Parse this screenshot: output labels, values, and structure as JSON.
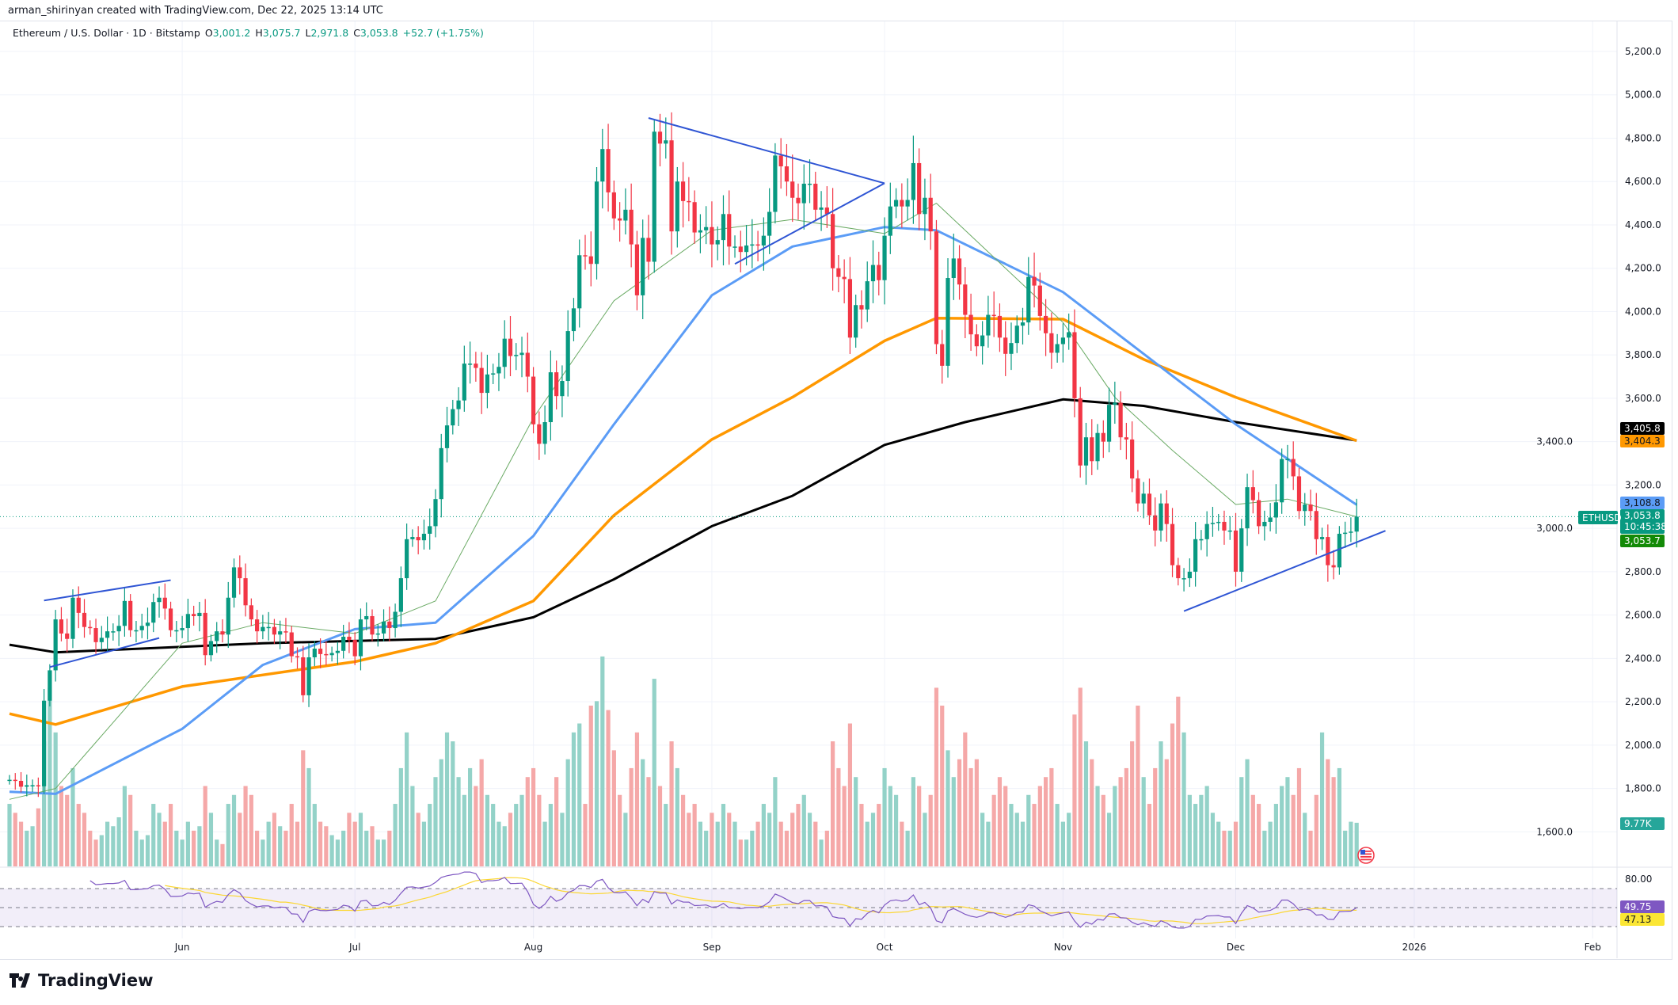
{
  "attribution": "arman_shirinyan created with TradingView.com, Dec 22, 2025 13:14 UTC",
  "legend": {
    "symbol": "Ethereum / U.S. Dollar · 1D · Bitstamp",
    "o_label": "O",
    "o": "3,001.2",
    "h_label": "H",
    "h": "3,075.7",
    "l_label": "L",
    "l": "2,971.8",
    "c_label": "C",
    "c": "3,053.8",
    "change": "+52.7 (+1.75%)"
  },
  "branding": "TradingView",
  "price_axis_labels": [
    "5,200.0",
    "5,000.0",
    "4,800.0",
    "4,600.0",
    "4,400.0",
    "4,200.0",
    "4,000.0",
    "3,800.0",
    "3,600.0",
    "3,400.0",
    "3,200.0",
    "3,000.0",
    "2,800.0",
    "2,600.0",
    "2,400.0",
    "2,200.0",
    "2,000.0",
    "1,800.0",
    "1,600.0"
  ],
  "time_axis_labels": [
    {
      "label": "Jun",
      "date": "2025-06-01"
    },
    {
      "label": "Jul",
      "date": "2025-07-01"
    },
    {
      "label": "Aug",
      "date": "2025-08-01"
    },
    {
      "label": "Sep",
      "date": "2025-09-01"
    },
    {
      "label": "Oct",
      "date": "2025-10-01"
    },
    {
      "label": "Nov",
      "date": "2025-11-01"
    },
    {
      "label": "Dec",
      "date": "2025-12-01"
    },
    {
      "label": "2026",
      "date": "2026-01-01"
    },
    {
      "label": "Feb",
      "date": "2026-02-01"
    }
  ],
  "price_tags": {
    "ma200": {
      "text": "3,405.8",
      "color": "#000000"
    },
    "ma100": {
      "text": "3,404.3",
      "color": "#ff9800"
    },
    "ma50": {
      "text": "3,108.8",
      "color": "#5b9cf6"
    },
    "last": {
      "text": "3,053.8",
      "countdown": "10:45:38",
      "symbol": "ETHUSD",
      "color": "#089981"
    },
    "ma20": {
      "text": "3,053.7",
      "color": "#138a07"
    },
    "volume": {
      "text": "9.77K",
      "color": "#26a69a"
    },
    "rsi": {
      "text": "49.75",
      "color": "#7e57c2"
    },
    "rsi_ma": {
      "text": "47.13",
      "color": "#fbe634"
    },
    "rsi_axis": "80.00"
  },
  "chart_data": {
    "type": "candlestick",
    "start_date": "2025-05-02",
    "interval": "1D",
    "ylim": [
      1600,
      5300
    ],
    "colors": {
      "up": "#089981",
      "down": "#f23645",
      "ma20": "#6aaa64",
      "ma50": "#5b9cf6",
      "ma100": "#ff9800",
      "ma200": "#000000",
      "trendline": "#2f55d4"
    },
    "close": [
      1840,
      1835,
      1808,
      1815,
      1815,
      1810,
      2205,
      2345,
      2580,
      2515,
      2490,
      2680,
      2610,
      2545,
      2540,
      2475,
      2495,
      2525,
      2525,
      2550,
      2665,
      2530,
      2530,
      2550,
      2565,
      2660,
      2680,
      2630,
      2530,
      2530,
      2540,
      2605,
      2595,
      2610,
      2415,
      2480,
      2525,
      2510,
      2680,
      2820,
      2770,
      2645,
      2580,
      2525,
      2545,
      2545,
      2510,
      2525,
      2520,
      2410,
      2405,
      2230,
      2405,
      2445,
      2420,
      2415,
      2425,
      2435,
      2500,
      2485,
      2410,
      2580,
      2595,
      2510,
      2515,
      2570,
      2540,
      2615,
      2770,
      2950,
      2960,
      2945,
      2975,
      3010,
      3135,
      3370,
      3475,
      3550,
      3590,
      3760,
      3760,
      3740,
      3625,
      3710,
      3715,
      3745,
      3875,
      3795,
      3800,
      3810,
      3700,
      3480,
      3390,
      3490,
      3720,
      3610,
      3680,
      3910,
      4015,
      4260,
      4255,
      4220,
      4600,
      4750,
      4550,
      4430,
      4420,
      4470,
      4310,
      4075,
      4340,
      4230,
      4830,
      4775,
      4790,
      4370,
      4600,
      4510,
      4505,
      4365,
      4375,
      4390,
      4310,
      4330,
      4450,
      4300,
      4300,
      4275,
      4305,
      4310,
      4305,
      4350,
      4460,
      4720,
      4670,
      4600,
      4525,
      4500,
      4590,
      4590,
      4470,
      4480,
      4450,
      4200,
      4160,
      4150,
      3880,
      4030,
      4010,
      4140,
      4215,
      4145,
      4350,
      4485,
      4515,
      4485,
      4515,
      4685,
      4450,
      4525,
      4370,
      3850,
      3750,
      4155,
      4245,
      4125,
      3985,
      3895,
      3840,
      3890,
      3985,
      3980,
      3880,
      3805,
      3855,
      3935,
      3950,
      4160,
      4120,
      3980,
      3900,
      3810,
      3850,
      3880,
      3905,
      3600,
      3290,
      3420,
      3310,
      3440,
      3400,
      3570,
      3580,
      3420,
      3410,
      3230,
      3115,
      3160,
      3060,
      2990,
      3115,
      3020,
      2830,
      2770,
      2770,
      2800,
      2950,
      2950,
      3020,
      3025,
      3030,
      2990,
      2990,
      2800,
      3000,
      3190,
      3130,
      3010,
      3030,
      3050,
      3120,
      3320,
      3320,
      3240,
      3080,
      3110,
      3080,
      2950,
      2960,
      2830,
      2820,
      2975,
      2980,
      2985,
      3053.8
    ],
    "volume_k": [
      14,
      12,
      10,
      8,
      9,
      13,
      28,
      40,
      30,
      18,
      16,
      22,
      14,
      12,
      8,
      6,
      7,
      10,
      9,
      11,
      18,
      16,
      8,
      6,
      7,
      14,
      12,
      10,
      14,
      8,
      6,
      10,
      8,
      9,
      18,
      12,
      6,
      5,
      14,
      16,
      12,
      18,
      16,
      8,
      6,
      10,
      12,
      9,
      8,
      14,
      10,
      26,
      22,
      14,
      10,
      9,
      7,
      6,
      8,
      12,
      10,
      12,
      8,
      9,
      6,
      6,
      8,
      14,
      22,
      30,
      18,
      12,
      10,
      14,
      20,
      24,
      30,
      28,
      20,
      16,
      22,
      18,
      24,
      16,
      14,
      10,
      9,
      12,
      14,
      16,
      20,
      22,
      16,
      10,
      14,
      20,
      12,
      24,
      30,
      32,
      14,
      36,
      37,
      47,
      35,
      26,
      16,
      12,
      22,
      30,
      24,
      20,
      42,
      18,
      14,
      28,
      22,
      16,
      12,
      14,
      10,
      8,
      12,
      10,
      14,
      12,
      10,
      6,
      6,
      8,
      10,
      14,
      12,
      20,
      10,
      8,
      12,
      14,
      16,
      12,
      10,
      6,
      8,
      28,
      22,
      18,
      32,
      20,
      14,
      10,
      12,
      14,
      22,
      18,
      16,
      10,
      8,
      20,
      18,
      12,
      16,
      40,
      36,
      26,
      20,
      24,
      30,
      22,
      24,
      12,
      10,
      16,
      20,
      18,
      14,
      12,
      10,
      16,
      14,
      18,
      20,
      22,
      14,
      10,
      12,
      34,
      40,
      28,
      24,
      18,
      16,
      12,
      18,
      20,
      22,
      28,
      36,
      20,
      14,
      22,
      28,
      24,
      32,
      38,
      30,
      16,
      14,
      16,
      18,
      12,
      10,
      8,
      8,
      10,
      20,
      24,
      16,
      14,
      8,
      10,
      14,
      18,
      20,
      16,
      22,
      12,
      8,
      16,
      30,
      24,
      20,
      22,
      8,
      10,
      9.77
    ],
    "moving_averages": {
      "ma20": [
        [
          "2025-05-02",
          1750
        ],
        [
          "2025-05-10",
          1800
        ],
        [
          "2025-06-01",
          2470
        ],
        [
          "2025-06-15",
          2565
        ],
        [
          "2025-07-01",
          2515
        ],
        [
          "2025-07-15",
          2665
        ],
        [
          "2025-08-01",
          3510
        ],
        [
          "2025-08-15",
          4050
        ],
        [
          "2025-09-01",
          4375
        ],
        [
          "2025-09-15",
          4425
        ],
        [
          "2025-10-01",
          4360
        ],
        [
          "2025-10-10",
          4500
        ],
        [
          "2025-10-20",
          4250
        ],
        [
          "2025-11-01",
          3950
        ],
        [
          "2025-11-10",
          3605
        ],
        [
          "2025-11-20",
          3360
        ],
        [
          "2025-12-01",
          3110
        ],
        [
          "2025-12-10",
          3135
        ],
        [
          "2025-12-22",
          3053.7
        ]
      ],
      "ma50": [
        [
          "2025-05-02",
          1785
        ],
        [
          "2025-05-10",
          1775
        ],
        [
          "2025-06-01",
          2075
        ],
        [
          "2025-06-15",
          2370
        ],
        [
          "2025-07-01",
          2535
        ],
        [
          "2025-07-15",
          2565
        ],
        [
          "2025-08-01",
          2965
        ],
        [
          "2025-08-15",
          3480
        ],
        [
          "2025-09-01",
          4075
        ],
        [
          "2025-09-15",
          4300
        ],
        [
          "2025-10-01",
          4390
        ],
        [
          "2025-10-10",
          4375
        ],
        [
          "2025-11-01",
          4090
        ],
        [
          "2025-11-15",
          3805
        ],
        [
          "2025-12-01",
          3480
        ],
        [
          "2025-12-22",
          3108.8
        ]
      ],
      "ma100": [
        [
          "2025-05-02",
          2145
        ],
        [
          "2025-05-10",
          2095
        ],
        [
          "2025-06-01",
          2270
        ],
        [
          "2025-07-01",
          2385
        ],
        [
          "2025-07-15",
          2470
        ],
        [
          "2025-08-01",
          2665
        ],
        [
          "2025-08-15",
          3060
        ],
        [
          "2025-09-01",
          3410
        ],
        [
          "2025-09-15",
          3605
        ],
        [
          "2025-10-01",
          3865
        ],
        [
          "2025-10-10",
          3970
        ],
        [
          "2025-11-01",
          3965
        ],
        [
          "2025-11-15",
          3780
        ],
        [
          "2025-12-01",
          3605
        ],
        [
          "2025-12-22",
          3404.3
        ]
      ],
      "ma200": [
        [
          "2025-05-02",
          2463
        ],
        [
          "2025-05-10",
          2428
        ],
        [
          "2025-06-15",
          2470
        ],
        [
          "2025-07-15",
          2490
        ],
        [
          "2025-08-01",
          2590
        ],
        [
          "2025-08-15",
          2765
        ],
        [
          "2025-09-01",
          3010
        ],
        [
          "2025-09-15",
          3150
        ],
        [
          "2025-10-01",
          3385
        ],
        [
          "2025-10-15",
          3490
        ],
        [
          "2025-11-01",
          3595
        ],
        [
          "2025-11-15",
          3565
        ],
        [
          "2025-12-01",
          3490
        ],
        [
          "2025-12-22",
          3405.8
        ]
      ]
    },
    "trendlines": [
      [
        [
          "2025-05-08",
          2667
        ],
        [
          "2025-05-30",
          2761
        ]
      ],
      [
        [
          "2025-05-09",
          2360
        ],
        [
          "2025-05-28",
          2494
        ]
      ],
      [
        [
          "2025-08-21",
          4893
        ],
        [
          "2025-10-01",
          4592
        ]
      ],
      [
        [
          "2025-09-05",
          4220
        ],
        [
          "2025-10-01",
          4592
        ]
      ],
      [
        [
          "2025-11-22",
          2618
        ],
        [
          "2025-12-27",
          2989
        ]
      ]
    ],
    "rsi": {
      "period": 14,
      "levels": [
        70,
        50,
        30
      ],
      "last": 49.75,
      "ma_last": 47.13
    }
  }
}
